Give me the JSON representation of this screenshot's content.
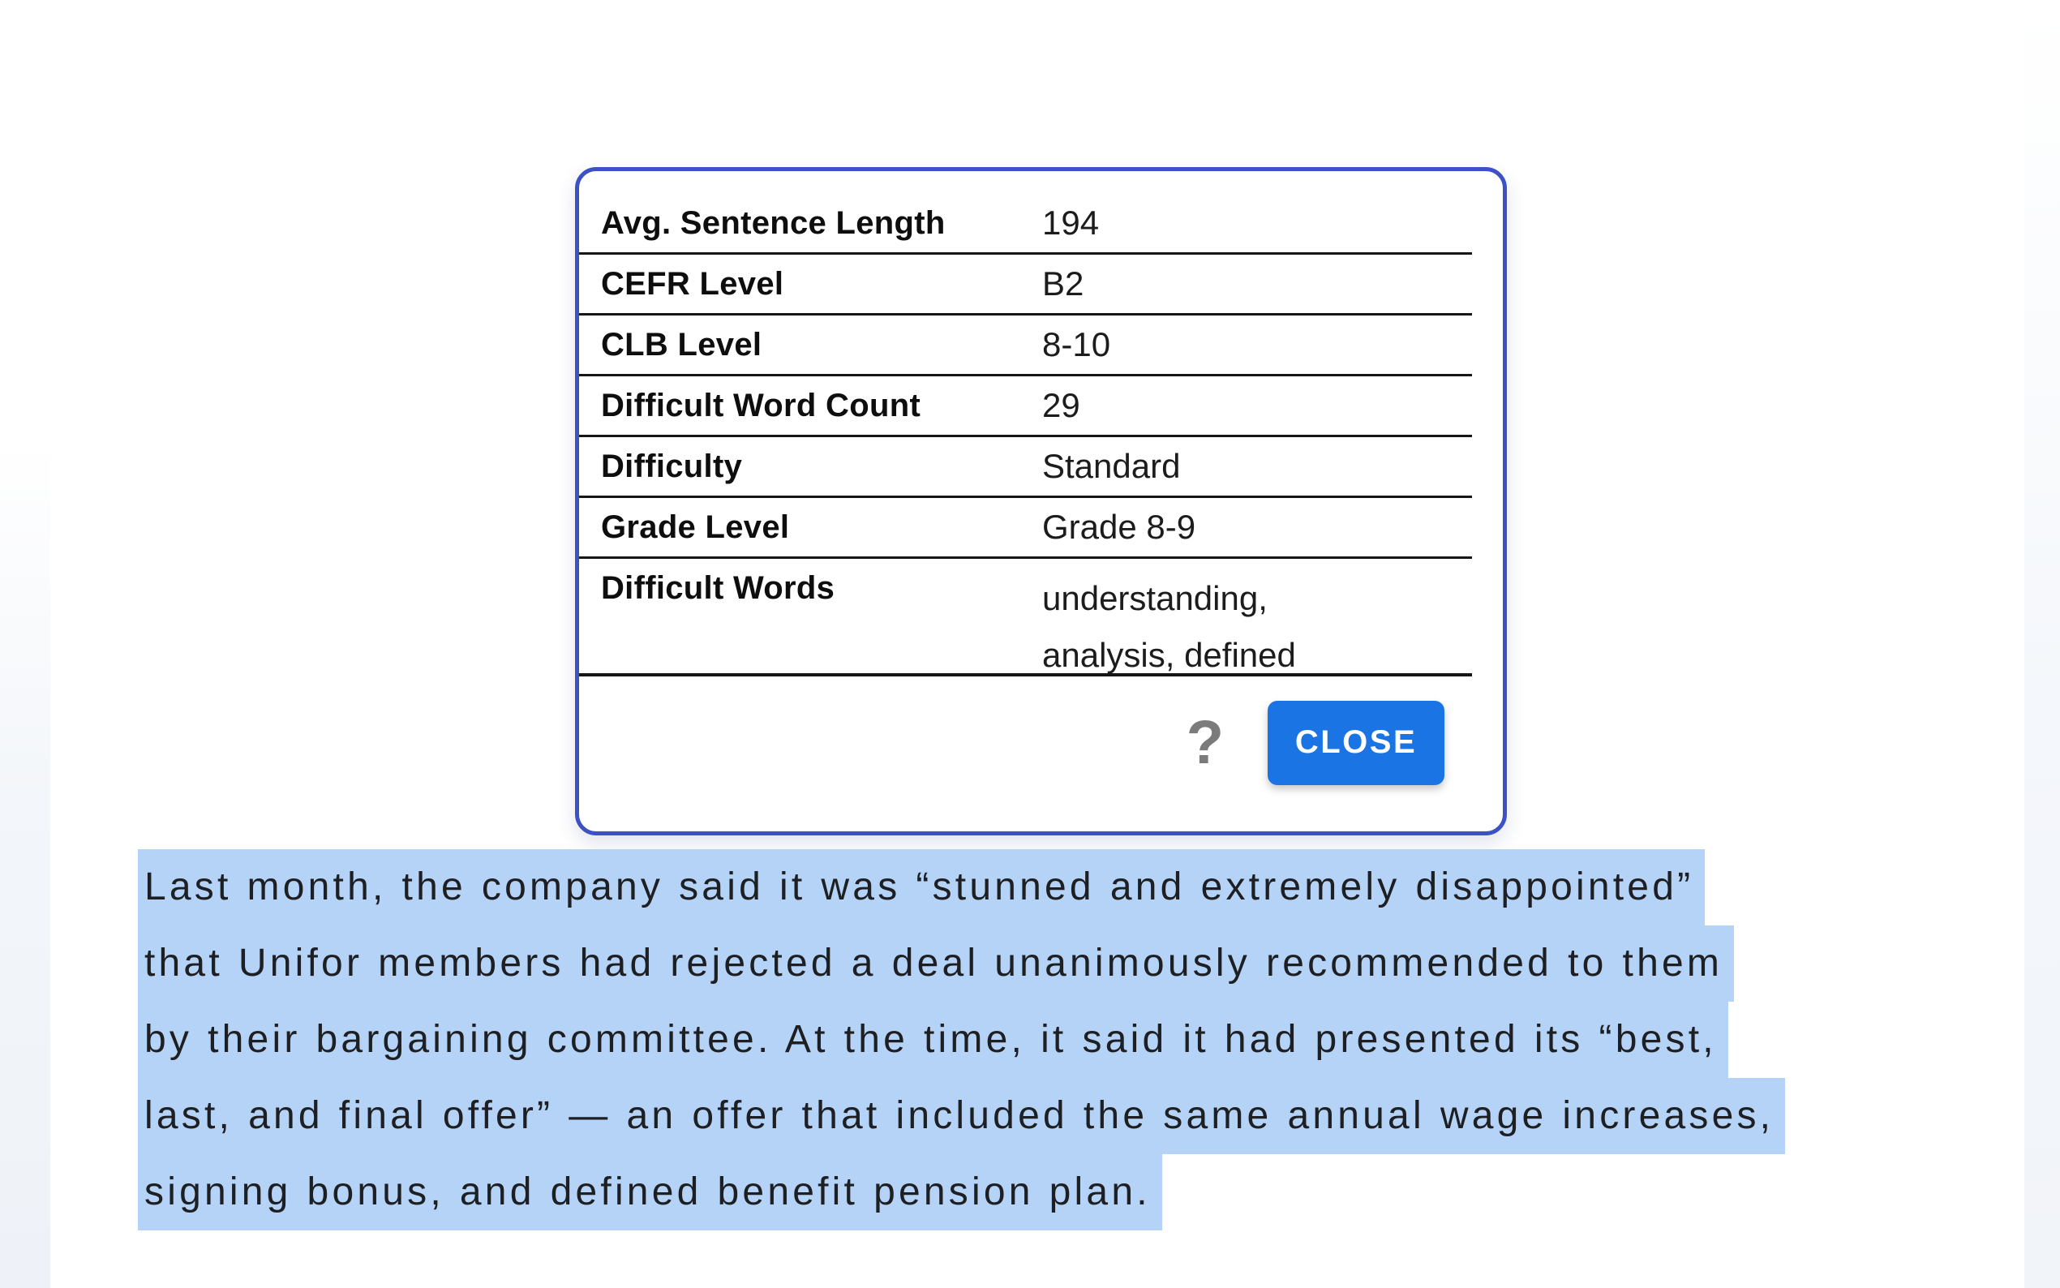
{
  "popup": {
    "border_color": "#3b51c5",
    "rows": [
      {
        "label": "Avg. Sentence Length",
        "value": "194"
      },
      {
        "label": "CEFR Level",
        "value": "B2"
      },
      {
        "label": "CLB Level",
        "value": "8-10"
      },
      {
        "label": "Difficult Word Count",
        "value": "29"
      },
      {
        "label": "Difficulty",
        "value": "Standard"
      },
      {
        "label": "Grade Level",
        "value": "Grade 8-9"
      },
      {
        "label": "Difficult Words",
        "value": "understanding,\nanalysis, defined"
      }
    ],
    "help_icon_glyph": "?",
    "close_label": "CLOSE",
    "close_button_color": "#1b74e4"
  },
  "article": {
    "highlight_color": "#b5d3f7",
    "lines": [
      "Last month, the company said it was “stunned and extremely disappointed”",
      "that Unifor members had rejected a deal unanimously recommended to them",
      "by their bargaining committee. At the time, it said it had presented its “best,",
      "last, and final offer” — an offer that included the same annual wage increases,",
      "signing bonus, and defined benefit pension plan."
    ]
  }
}
